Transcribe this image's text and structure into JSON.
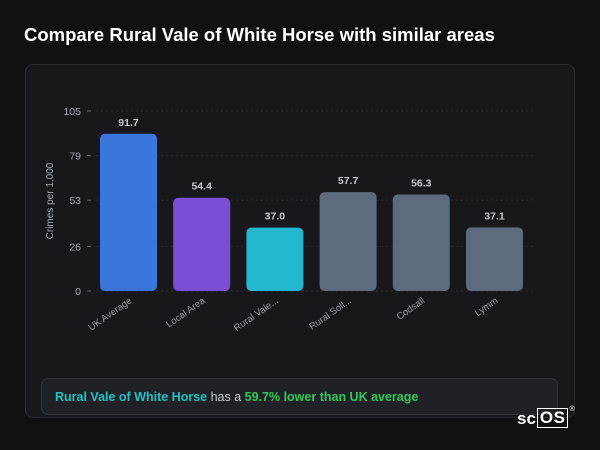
{
  "page": {
    "title": "Compare Rural Vale of White Horse with similar areas"
  },
  "chart_data": {
    "type": "bar",
    "title": "",
    "xlabel": "",
    "ylabel": "Crimes per 1,000",
    "ylim": [
      0,
      105
    ],
    "yticks": [
      0,
      26,
      53,
      79,
      105
    ],
    "grid": true,
    "categories": [
      "UK Average",
      "Local Area",
      "Rural Vale...",
      "Rural Soll...",
      "Codsall",
      "Lymm"
    ],
    "values": [
      91.7,
      54.4,
      37.0,
      57.7,
      56.3,
      37.1
    ],
    "value_labels": [
      "91.7",
      "54.4",
      "37.0",
      "57.7",
      "56.3",
      "37.1"
    ],
    "colors": [
      "#3a76db",
      "#7a4fd6",
      "#22b8d0",
      "#5e6a7d",
      "#5e6a7d",
      "#5e6a7d"
    ]
  },
  "summary": {
    "area": "Rural Vale of White Horse",
    "middle": " has a ",
    "comparison": "59.7% lower than UK average"
  },
  "brand": {
    "logo_prefix": "sc",
    "logo_boxed": "OS",
    "logo_mark": "®"
  }
}
